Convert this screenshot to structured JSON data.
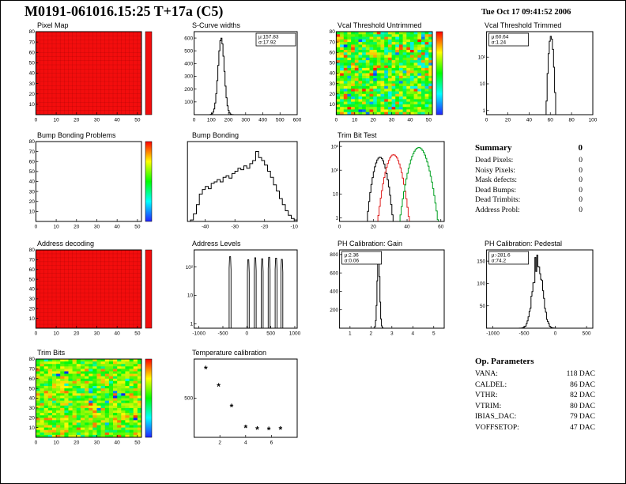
{
  "page": {
    "title": "M0191-061016.15:25 T+17a (C5)",
    "timestamp": "Tue Oct 17 09:41:52 2006"
  },
  "summary": {
    "title": "Summary",
    "total": "0",
    "rows": [
      {
        "label": "Dead Pixels:",
        "value": "0"
      },
      {
        "label": "Noisy Pixels:",
        "value": "0"
      },
      {
        "label": "Mask defects:",
        "value": "0"
      },
      {
        "label": "Dead Bumps:",
        "value": "0"
      },
      {
        "label": "Dead Trimbits:",
        "value": "0"
      },
      {
        "label": "Address Probl:",
        "value": "0"
      }
    ]
  },
  "op_parameters": {
    "title": "Op. Parameters",
    "rows": [
      {
        "label": "VANA:",
        "value": "118 DAC"
      },
      {
        "label": "CALDEL:",
        "value": "86 DAC"
      },
      {
        "label": "VTHR:",
        "value": "82 DAC"
      },
      {
        "label": "VTRIM:",
        "value": "80 DAC"
      },
      {
        "label": "IBIAS_DAC:",
        "value": "79 DAC"
      },
      {
        "label": "VOFFSETOP:",
        "value": "47 DAC"
      }
    ]
  },
  "chart_data": [
    {
      "type": "heatmap",
      "title": "Pixel Map",
      "style": "uniform",
      "fill_color": "#f30d0d",
      "colorbar": "solid",
      "xlim": [
        0,
        52
      ],
      "ylim": [
        0,
        80
      ],
      "xticks": [
        0,
        10,
        20,
        30,
        40,
        50
      ],
      "yticks": [
        10,
        20,
        30,
        40,
        50,
        60,
        70,
        80
      ]
    },
    {
      "type": "hist",
      "title": "S-Curve widths",
      "xlim": [
        0,
        600
      ],
      "xticks": [
        0,
        100,
        200,
        300,
        400,
        500,
        600
      ],
      "ylim": [
        0,
        650
      ],
      "yticks": [
        100,
        200,
        300,
        400,
        500,
        600
      ],
      "gauss": {
        "mean": 157.83,
        "sigma": 17.92,
        "peak": 600
      },
      "stats": {
        "lines": [
          "μ:157.83",
          "σ:17.92"
        ],
        "pos": "tr"
      }
    },
    {
      "type": "heatmap",
      "title": "Vcal Threshold Untrimmed",
      "style": "noise",
      "colorbar": "rainbow",
      "noise": {
        "center": 0.55,
        "spread": 0.17,
        "outlier_prob": 0.07
      },
      "xlim": [
        0,
        52
      ],
      "ylim": [
        0,
        80
      ],
      "xticks": [
        0,
        10,
        20,
        30,
        40,
        50
      ],
      "yticks": [
        10,
        20,
        30,
        40,
        50,
        60,
        70,
        80
      ]
    },
    {
      "type": "hist",
      "title": "Vcal Threshold Trimmed",
      "xlim": [
        0,
        100
      ],
      "xticks": [
        0,
        20,
        40,
        60,
        80,
        100
      ],
      "ylog": true,
      "ylim": [
        0.7,
        900
      ],
      "yticks": [
        [
          1,
          "1"
        ],
        [
          10,
          "10"
        ],
        [
          100,
          "10²"
        ]
      ],
      "gauss": {
        "mean": 60.64,
        "sigma": 1.24,
        "peak": 600
      },
      "stats": {
        "lines": [
          "μ:60.64",
          "σ:1.24"
        ],
        "pos": "tl"
      }
    },
    {
      "type": "heatmap",
      "title": "Bump Bonding Problems",
      "style": "empty",
      "colorbar": "rainbow",
      "xlim": [
        0,
        52
      ],
      "ylim": [
        0,
        80
      ],
      "xticks": [
        0,
        10,
        20,
        30,
        40,
        50
      ],
      "yticks": [
        10,
        20,
        30,
        40,
        50,
        60,
        70,
        80
      ]
    },
    {
      "type": "hist",
      "title": "Bump Bonding",
      "xlim": [
        -46,
        -9
      ],
      "xticks": [
        -40,
        -30,
        -20,
        -10
      ],
      "ylim": [
        0,
        1.05
      ],
      "yticks": [],
      "points": [
        [
          -45,
          0.02
        ],
        [
          -44,
          0.1
        ],
        [
          -43,
          0.22
        ],
        [
          -42,
          0.36
        ],
        [
          -41,
          0.42
        ],
        [
          -40,
          0.46
        ],
        [
          -39,
          0.43
        ],
        [
          -38,
          0.5
        ],
        [
          -37,
          0.52
        ],
        [
          -36,
          0.55
        ],
        [
          -35,
          0.52
        ],
        [
          -34,
          0.58
        ],
        [
          -33,
          0.6
        ],
        [
          -32,
          0.57
        ],
        [
          -31,
          0.63
        ],
        [
          -30,
          0.66
        ],
        [
          -29,
          0.7
        ],
        [
          -28,
          0.68
        ],
        [
          -27,
          0.73
        ],
        [
          -26,
          0.7
        ],
        [
          -25,
          0.76
        ],
        [
          -24,
          0.8
        ],
        [
          -23,
          0.92
        ],
        [
          -22,
          0.84
        ],
        [
          -21,
          0.8
        ],
        [
          -20,
          0.74
        ],
        [
          -19,
          0.66
        ],
        [
          -18,
          0.58
        ],
        [
          -17,
          0.48
        ],
        [
          -16,
          0.4
        ],
        [
          -15,
          0.3
        ],
        [
          -14,
          0.22
        ],
        [
          -13,
          0.14
        ],
        [
          -12,
          0.08
        ],
        [
          -11,
          0.04
        ],
        [
          -10,
          0.02
        ]
      ]
    },
    {
      "type": "multihist",
      "title": "Trim Bit Test",
      "xlim": [
        0,
        62
      ],
      "xticks": [
        0,
        20,
        40,
        60
      ],
      "ylog": true,
      "ylim": [
        0.7,
        1600
      ],
      "yticks": [
        [
          1,
          "1"
        ],
        [
          10,
          "10"
        ],
        [
          100,
          "10²"
        ],
        [
          1000,
          "10³"
        ]
      ],
      "series": [
        {
          "name": "trim-bit-black",
          "color": "#000000",
          "mean": 24,
          "sigma": 2.2,
          "peak": 350
        },
        {
          "name": "trim-bit-red",
          "color": "#e02020",
          "mean": 32,
          "sigma": 2.6,
          "peak": 450
        },
        {
          "name": "trim-bit-green",
          "color": "#00a020",
          "mean": 47,
          "sigma": 3.0,
          "peak": 900
        }
      ]
    },
    {
      "type": "heatmap",
      "title": "Address decoding",
      "style": "uniform",
      "fill_color": "#f30d0d",
      "colorbar": "solid",
      "xlim": [
        0,
        52
      ],
      "ylim": [
        0,
        80
      ],
      "xticks": [
        0,
        10,
        20,
        30,
        40,
        50
      ],
      "yticks": [
        10,
        20,
        30,
        40,
        50,
        60,
        70,
        80
      ]
    },
    {
      "type": "spikes",
      "title": "Address Levels",
      "xlim": [
        -1100,
        1050
      ],
      "xticks": [
        -1000,
        -500,
        0,
        500,
        1000
      ],
      "ylog": true,
      "ylim": [
        0.7,
        400
      ],
      "yticks": [
        [
          1,
          "1"
        ],
        [
          10,
          "10"
        ],
        [
          100,
          "10²"
        ]
      ],
      "spikes": [
        [
          -350,
          230
        ],
        [
          30,
          180
        ],
        [
          175,
          210
        ],
        [
          320,
          195
        ],
        [
          465,
          220
        ],
        [
          610,
          205
        ],
        [
          730,
          185
        ]
      ]
    },
    {
      "type": "hist",
      "title": "PH Calibration: Gain",
      "xlim": [
        0.5,
        5.5
      ],
      "xticks": [
        1,
        2,
        3,
        4,
        5
      ],
      "ylim": [
        0,
        850
      ],
      "yticks": [
        200,
        400,
        600,
        800
      ],
      "gauss": {
        "mean": 2.36,
        "sigma": 0.06,
        "peak": 800
      },
      "bins": 140,
      "stats": {
        "lines": [
          "μ:2.36",
          "σ:0.06"
        ],
        "pos": "tl"
      }
    },
    {
      "type": "hist",
      "title": "PH Calibration: Pedestal",
      "xlim": [
        -1100,
        600
      ],
      "xticks": [
        -1000,
        -500,
        0,
        500
      ],
      "ylim": [
        0,
        175
      ],
      "yticks": [
        50,
        100,
        150
      ],
      "gauss": {
        "mean": -281.6,
        "sigma": 74.2,
        "peak": 160
      },
      "jitter": 0.18,
      "bins": 110,
      "stats": {
        "lines": [
          "μ:-281.6",
          "σ:74.2"
        ],
        "pos": "tl"
      }
    },
    {
      "type": "heatmap",
      "title": "Trim Bits",
      "style": "noise",
      "colorbar": "rainbow",
      "noise": {
        "center": 0.62,
        "spread": 0.12,
        "outlier_prob": 0.05
      },
      "xlim": [
        0,
        52
      ],
      "ylim": [
        0,
        80
      ],
      "xticks": [
        0,
        10,
        20,
        30,
        40,
        50
      ],
      "yticks": [
        10,
        20,
        30,
        40,
        50,
        60,
        70,
        80
      ]
    },
    {
      "type": "scatter",
      "title": "Temperature calibration",
      "xlim": [
        0,
        8
      ],
      "xticks": [
        2,
        4,
        6
      ],
      "ylim": [
        0,
        1000
      ],
      "yticks": [
        500
      ],
      "marker": "*",
      "points": [
        [
          0.9,
          870
        ],
        [
          1.9,
          645
        ],
        [
          2.9,
          385
        ],
        [
          4.0,
          115
        ],
        [
          4.9,
          95
        ],
        [
          5.8,
          93
        ],
        [
          6.7,
          97
        ]
      ]
    }
  ]
}
